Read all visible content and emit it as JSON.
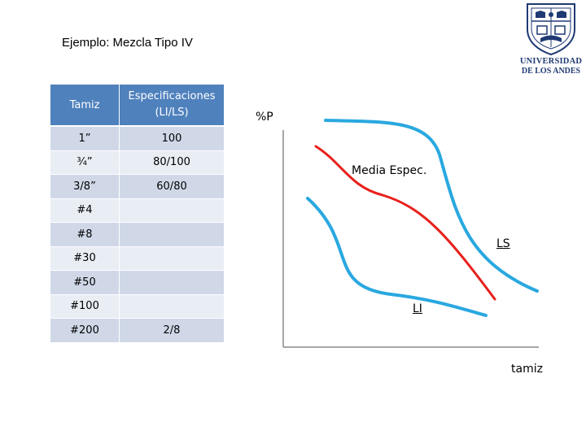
{
  "title": "Ejemplo: Mezcla Tipo IV",
  "logo": {
    "line1": "UNIVERSIDAD",
    "line2": "DE LOS ANDES",
    "colors": {
      "navy": "#1f3a73"
    }
  },
  "table": {
    "headers": {
      "col1": "Tamiz",
      "col2_line1": "Especificaciones",
      "col2_line2": "(LI/LS)"
    },
    "rows": [
      {
        "tamiz": "1”",
        "spec": "100"
      },
      {
        "tamiz": "¾”",
        "spec": "80/100"
      },
      {
        "tamiz": "3/8”",
        "spec": "60/80"
      },
      {
        "tamiz": "#4",
        "spec": ""
      },
      {
        "tamiz": "#8",
        "spec": ""
      },
      {
        "tamiz": "#30",
        "spec": ""
      },
      {
        "tamiz": "#50",
        "spec": ""
      },
      {
        "tamiz": "#100",
        "spec": ""
      },
      {
        "tamiz": "#200",
        "spec": "2/8"
      }
    ],
    "colors": {
      "header": "#4f81bd",
      "row_dark": "#d0d8e8",
      "row_light": "#e9edf4"
    }
  },
  "diagram": {
    "y_axis_label": "%P",
    "x_axis_label": "tamiz",
    "curve_labels": {
      "media": "Media Espec.",
      "ls": "LS",
      "li": "LI"
    },
    "colors": {
      "limit_curves": "#29a8e0",
      "media_curve": "#e8201c",
      "axis": "#a6a6a6"
    }
  }
}
